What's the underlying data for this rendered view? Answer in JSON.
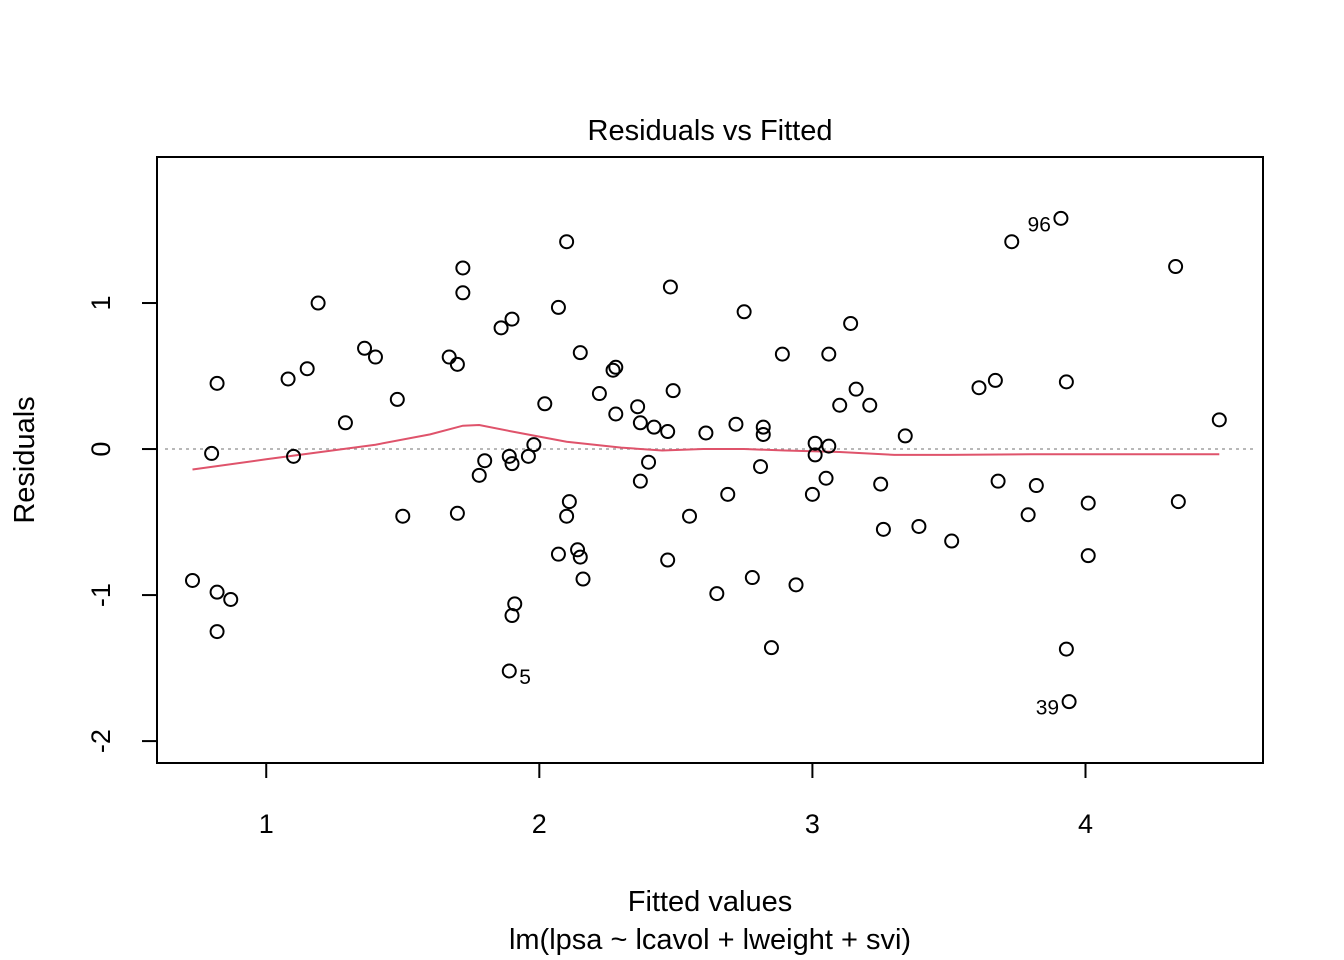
{
  "chart_data": {
    "type": "scatter",
    "title": "Residuals vs Fitted",
    "xlabel": "Fitted values",
    "subtitle": "lm(lpsa ~ lcavol + lweight + svi)",
    "ylabel": "Residuals",
    "xlim": [
      0.6,
      4.65
    ],
    "ylim": [
      -2.15,
      2.0
    ],
    "xticks": [
      1,
      2,
      3,
      4
    ],
    "yticks": [
      -2,
      -1,
      0,
      1
    ],
    "grid": false,
    "reference_line": {
      "y": 0,
      "style": "dotted",
      "color": "#a0a0a0"
    },
    "smoother": {
      "color": "#df536b",
      "x": [
        0.73,
        1.0,
        1.2,
        1.4,
        1.6,
        1.72,
        1.78,
        1.9,
        2.1,
        2.3,
        2.45,
        2.6,
        2.75,
        2.9,
        3.1,
        3.3,
        3.5,
        3.8,
        4.1,
        4.49
      ],
      "y": [
        -0.14,
        -0.07,
        -0.02,
        0.03,
        0.1,
        0.16,
        0.165,
        0.12,
        0.05,
        0.01,
        -0.01,
        0.0,
        0.0,
        -0.01,
        -0.02,
        -0.04,
        -0.04,
        -0.035,
        -0.035,
        -0.035
      ]
    },
    "points": [
      {
        "x": 0.73,
        "y": -0.9
      },
      {
        "x": 0.8,
        "y": -0.03
      },
      {
        "x": 0.82,
        "y": 0.45
      },
      {
        "x": 0.82,
        "y": -0.98
      },
      {
        "x": 0.87,
        "y": -1.03
      },
      {
        "x": 0.82,
        "y": -1.25
      },
      {
        "x": 1.08,
        "y": 0.48
      },
      {
        "x": 1.1,
        "y": -0.05
      },
      {
        "x": 1.15,
        "y": 0.55
      },
      {
        "x": 1.19,
        "y": 1.0
      },
      {
        "x": 1.29,
        "y": 0.18
      },
      {
        "x": 1.36,
        "y": 0.69
      },
      {
        "x": 1.4,
        "y": 0.63
      },
      {
        "x": 1.48,
        "y": 0.34
      },
      {
        "x": 1.5,
        "y": -0.46
      },
      {
        "x": 1.67,
        "y": 0.63
      },
      {
        "x": 1.7,
        "y": 0.58
      },
      {
        "x": 1.7,
        "y": -0.44
      },
      {
        "x": 1.72,
        "y": 1.24
      },
      {
        "x": 1.72,
        "y": 1.07
      },
      {
        "x": 1.78,
        "y": -0.18
      },
      {
        "x": 1.8,
        "y": -0.08
      },
      {
        "x": 1.86,
        "y": 0.83
      },
      {
        "x": 1.9,
        "y": 0.89
      },
      {
        "x": 1.89,
        "y": -0.05
      },
      {
        "x": 1.9,
        "y": -0.1
      },
      {
        "x": 1.91,
        "y": -1.06
      },
      {
        "x": 1.9,
        "y": -1.14
      },
      {
        "x": 1.89,
        "y": -1.52
      },
      {
        "x": 1.96,
        "y": -0.05
      },
      {
        "x": 1.98,
        "y": 0.03
      },
      {
        "x": 2.02,
        "y": 0.31
      },
      {
        "x": 2.07,
        "y": 0.97
      },
      {
        "x": 2.07,
        "y": -0.72
      },
      {
        "x": 2.1,
        "y": 1.42
      },
      {
        "x": 2.11,
        "y": -0.36
      },
      {
        "x": 2.1,
        "y": -0.46
      },
      {
        "x": 2.14,
        "y": -0.69
      },
      {
        "x": 2.15,
        "y": -0.74
      },
      {
        "x": 2.16,
        "y": -0.89
      },
      {
        "x": 2.15,
        "y": 0.66
      },
      {
        "x": 2.22,
        "y": 0.38
      },
      {
        "x": 2.27,
        "y": 0.54
      },
      {
        "x": 2.28,
        "y": 0.56
      },
      {
        "x": 2.28,
        "y": 0.24
      },
      {
        "x": 2.36,
        "y": 0.29
      },
      {
        "x": 2.37,
        "y": 0.18
      },
      {
        "x": 2.37,
        "y": -0.22
      },
      {
        "x": 2.4,
        "y": -0.09
      },
      {
        "x": 2.42,
        "y": 0.15
      },
      {
        "x": 2.47,
        "y": 0.12
      },
      {
        "x": 2.47,
        "y": -0.76
      },
      {
        "x": 2.48,
        "y": 1.11
      },
      {
        "x": 2.49,
        "y": 0.4
      },
      {
        "x": 2.55,
        "y": -0.46
      },
      {
        "x": 2.61,
        "y": 0.11
      },
      {
        "x": 2.65,
        "y": -0.99
      },
      {
        "x": 2.69,
        "y": -0.31
      },
      {
        "x": 2.72,
        "y": 0.17
      },
      {
        "x": 2.75,
        "y": 0.94
      },
      {
        "x": 2.78,
        "y": -0.88
      },
      {
        "x": 2.81,
        "y": -0.12
      },
      {
        "x": 2.82,
        "y": 0.15
      },
      {
        "x": 2.82,
        "y": 0.1
      },
      {
        "x": 2.85,
        "y": -1.36
      },
      {
        "x": 2.89,
        "y": 0.65
      },
      {
        "x": 2.94,
        "y": -0.93
      },
      {
        "x": 3.0,
        "y": -0.31
      },
      {
        "x": 3.01,
        "y": -0.04
      },
      {
        "x": 3.01,
        "y": 0.04
      },
      {
        "x": 3.05,
        "y": -0.2
      },
      {
        "x": 3.06,
        "y": 0.02
      },
      {
        "x": 3.06,
        "y": 0.65
      },
      {
        "x": 3.1,
        "y": 0.3
      },
      {
        "x": 3.14,
        "y": 0.86
      },
      {
        "x": 3.16,
        "y": 0.41
      },
      {
        "x": 3.21,
        "y": 0.3
      },
      {
        "x": 3.25,
        "y": -0.24
      },
      {
        "x": 3.26,
        "y": -0.55
      },
      {
        "x": 3.34,
        "y": 0.09
      },
      {
        "x": 3.39,
        "y": -0.53
      },
      {
        "x": 3.51,
        "y": -0.63
      },
      {
        "x": 3.61,
        "y": 0.42
      },
      {
        "x": 3.67,
        "y": 0.47
      },
      {
        "x": 3.68,
        "y": -0.22
      },
      {
        "x": 3.73,
        "y": 1.42
      },
      {
        "x": 3.79,
        "y": -0.45
      },
      {
        "x": 3.82,
        "y": -0.25
      },
      {
        "x": 3.91,
        "y": 1.58,
        "label": "96"
      },
      {
        "x": 3.93,
        "y": 0.46
      },
      {
        "x": 3.93,
        "y": -1.37
      },
      {
        "x": 3.94,
        "y": -1.73,
        "label": "39"
      },
      {
        "x": 4.01,
        "y": -0.37
      },
      {
        "x": 4.01,
        "y": -0.73
      },
      {
        "x": 4.33,
        "y": 1.25
      },
      {
        "x": 4.34,
        "y": -0.36
      },
      {
        "x": 4.49,
        "y": 0.2
      }
    ],
    "annotations": [
      {
        "text": "96",
        "x": 3.91,
        "y": 1.58,
        "side": "left"
      },
      {
        "text": "5",
        "x": 1.89,
        "y": -1.52,
        "side": "right"
      },
      {
        "text": "39",
        "x": 3.94,
        "y": -1.73,
        "side": "left"
      }
    ]
  }
}
